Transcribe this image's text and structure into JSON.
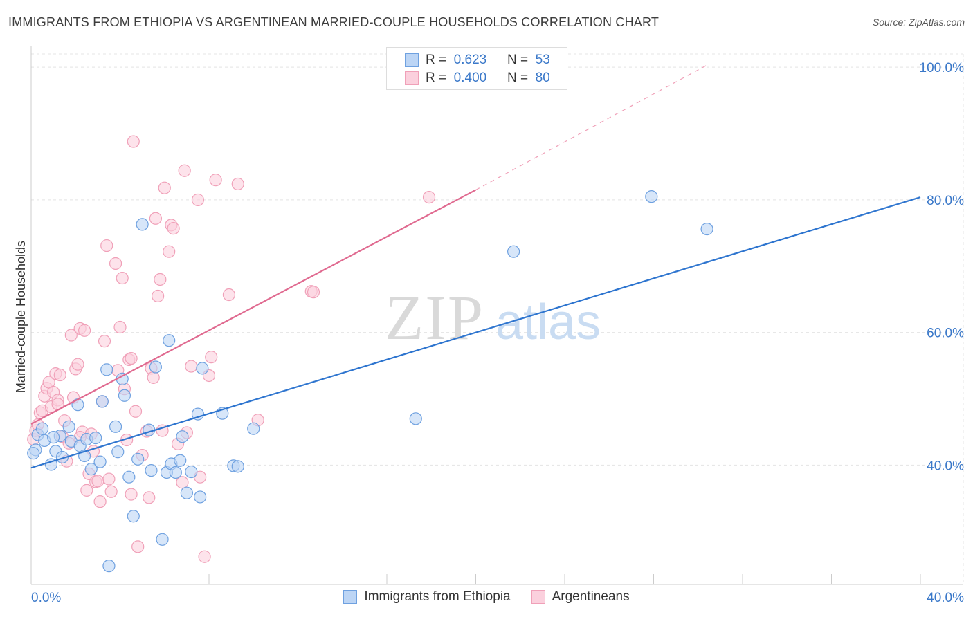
{
  "title": "IMMIGRANTS FROM ETHIOPIA VS ARGENTINEAN MARRIED-COUPLE HOUSEHOLDS CORRELATION CHART",
  "source": "Source: ZipAtlas.com",
  "watermark": {
    "zip": "ZIP",
    "atlas": "atlas"
  },
  "stats_box": {
    "r_label": "R =",
    "n_label": "N =",
    "rows": [
      {
        "r": "0.623",
        "n": "53",
        "color": "#6fa1e0",
        "fill": "#bcd5f5"
      },
      {
        "r": "0.400",
        "n": "80",
        "color": "#f0a0b8",
        "fill": "#fbd0dd"
      }
    ]
  },
  "chart_data": {
    "type": "scatter",
    "title": "IMMIGRANTS FROM ETHIOPIA VS ARGENTINEAN MARRIED-COUPLE HOUSEHOLDS CORRELATION CHART",
    "xlabel": "",
    "ylabel": "Married-couple Households",
    "xlim": [
      0,
      40
    ],
    "ylim": [
      22,
      102
    ],
    "x_tick_labels": [
      "0.0%",
      "40.0%"
    ],
    "y_tick_labels": [
      "40.0%",
      "60.0%",
      "80.0%",
      "100.0%"
    ],
    "y_tick_values": [
      40,
      60,
      80,
      100
    ],
    "grid": true,
    "legend_position": "bottom",
    "series": [
      {
        "name": "Immigrants from Ethiopia",
        "color": "#6fa1e0",
        "fill": "#bcd5f5",
        "line_color": "#2e75cf",
        "trend": {
          "x0": 0,
          "y0": 39.6,
          "x1": 40,
          "y1": 80.4
        },
        "points": [
          [
            0.2,
            42.3
          ],
          [
            0.3,
            44.6
          ],
          [
            0.5,
            45.5
          ],
          [
            0.6,
            43.7
          ],
          [
            0.9,
            40.1
          ],
          [
            1.1,
            42.1
          ],
          [
            1.3,
            44.4
          ],
          [
            1.4,
            41.2
          ],
          [
            1.7,
            45.8
          ],
          [
            1.8,
            43.6
          ],
          [
            2.1,
            49.1
          ],
          [
            2.2,
            42.9
          ],
          [
            2.4,
            41.4
          ],
          [
            2.5,
            43.9
          ],
          [
            2.7,
            39.4
          ],
          [
            2.9,
            44.1
          ],
          [
            3.1,
            40.5
          ],
          [
            3.2,
            49.6
          ],
          [
            3.5,
            24.8
          ],
          [
            3.4,
            54.4
          ],
          [
            3.8,
            45.8
          ],
          [
            3.9,
            42.0
          ],
          [
            4.1,
            53.0
          ],
          [
            4.2,
            50.5
          ],
          [
            4.4,
            38.2
          ],
          [
            4.6,
            32.3
          ],
          [
            4.8,
            40.9
          ],
          [
            5.0,
            76.3
          ],
          [
            5.3,
            45.3
          ],
          [
            5.4,
            39.2
          ],
          [
            5.6,
            54.8
          ],
          [
            5.9,
            28.8
          ],
          [
            6.1,
            38.9
          ],
          [
            6.2,
            58.8
          ],
          [
            6.3,
            40.2
          ],
          [
            6.5,
            38.9
          ],
          [
            6.7,
            40.7
          ],
          [
            6.8,
            44.3
          ],
          [
            7.0,
            35.8
          ],
          [
            7.2,
            39.0
          ],
          [
            7.5,
            47.7
          ],
          [
            7.6,
            35.2
          ],
          [
            7.7,
            54.6
          ],
          [
            8.6,
            47.8
          ],
          [
            9.1,
            39.9
          ],
          [
            9.3,
            39.8
          ],
          [
            10.0,
            45.5
          ],
          [
            17.3,
            47.0
          ],
          [
            21.7,
            72.2
          ],
          [
            27.9,
            80.5
          ],
          [
            30.4,
            75.6
          ],
          [
            0.1,
            41.8
          ],
          [
            1.0,
            44.2
          ]
        ]
      },
      {
        "name": "Argentineans",
        "color": "#f0a0b8",
        "fill": "#fbd0dd",
        "line_color": "#e06a90",
        "trend": {
          "x0": 0,
          "y0": 46.2,
          "x1": 20.0,
          "y1": 81.5
        },
        "trend_ext": {
          "x0": 20.0,
          "y0": 81.5,
          "x1": 30.5,
          "y1": 100.5
        },
        "points": [
          [
            0.1,
            43.9
          ],
          [
            0.2,
            45.2
          ],
          [
            0.3,
            46.1
          ],
          [
            0.4,
            47.9
          ],
          [
            0.5,
            48.2
          ],
          [
            0.6,
            50.4
          ],
          [
            0.7,
            51.6
          ],
          [
            0.8,
            52.5
          ],
          [
            0.9,
            48.8
          ],
          [
            1.0,
            51.0
          ],
          [
            1.1,
            53.8
          ],
          [
            1.2,
            49.8
          ],
          [
            1.3,
            53.6
          ],
          [
            1.4,
            44.3
          ],
          [
            1.5,
            46.7
          ],
          [
            1.6,
            40.6
          ],
          [
            1.7,
            43.3
          ],
          [
            1.8,
            59.6
          ],
          [
            1.9,
            50.2
          ],
          [
            2.0,
            54.5
          ],
          [
            2.1,
            55.2
          ],
          [
            2.2,
            60.6
          ],
          [
            2.3,
            45.0
          ],
          [
            2.4,
            60.3
          ],
          [
            2.5,
            36.2
          ],
          [
            2.6,
            38.7
          ],
          [
            2.7,
            44.7
          ],
          [
            2.8,
            42.1
          ],
          [
            2.9,
            37.5
          ],
          [
            3.0,
            37.6
          ],
          [
            3.1,
            34.5
          ],
          [
            3.2,
            49.6
          ],
          [
            3.3,
            58.7
          ],
          [
            3.4,
            73.1
          ],
          [
            3.5,
            37.9
          ],
          [
            3.6,
            36.0
          ],
          [
            3.8,
            70.4
          ],
          [
            3.9,
            54.3
          ],
          [
            4.0,
            60.8
          ],
          [
            4.1,
            68.2
          ],
          [
            4.2,
            51.5
          ],
          [
            4.3,
            43.8
          ],
          [
            4.4,
            55.9
          ],
          [
            4.5,
            35.6
          ],
          [
            4.6,
            88.8
          ],
          [
            4.7,
            48.1
          ],
          [
            4.8,
            27.7
          ],
          [
            5.0,
            41.5
          ],
          [
            5.2,
            45.1
          ],
          [
            5.3,
            35.1
          ],
          [
            5.4,
            54.6
          ],
          [
            5.5,
            53.2
          ],
          [
            5.6,
            77.2
          ],
          [
            5.7,
            65.5
          ],
          [
            5.8,
            68.0
          ],
          [
            6.0,
            81.8
          ],
          [
            6.2,
            72.2
          ],
          [
            6.3,
            76.2
          ],
          [
            6.4,
            75.7
          ],
          [
            6.6,
            43.2
          ],
          [
            6.8,
            37.4
          ],
          [
            6.9,
            84.4
          ],
          [
            7.0,
            44.9
          ],
          [
            7.2,
            54.9
          ],
          [
            7.5,
            80.0
          ],
          [
            7.8,
            26.2
          ],
          [
            8.0,
            53.5
          ],
          [
            8.1,
            56.3
          ],
          [
            8.3,
            83.0
          ],
          [
            8.9,
            65.7
          ],
          [
            9.3,
            82.4
          ],
          [
            10.2,
            46.8
          ],
          [
            12.6,
            66.2
          ],
          [
            12.7,
            66.1
          ],
          [
            17.9,
            80.4
          ],
          [
            5.9,
            45.2
          ],
          [
            7.6,
            38.2
          ],
          [
            1.2,
            49.2
          ],
          [
            4.5,
            56.1
          ],
          [
            2.2,
            44.2
          ]
        ]
      }
    ]
  }
}
